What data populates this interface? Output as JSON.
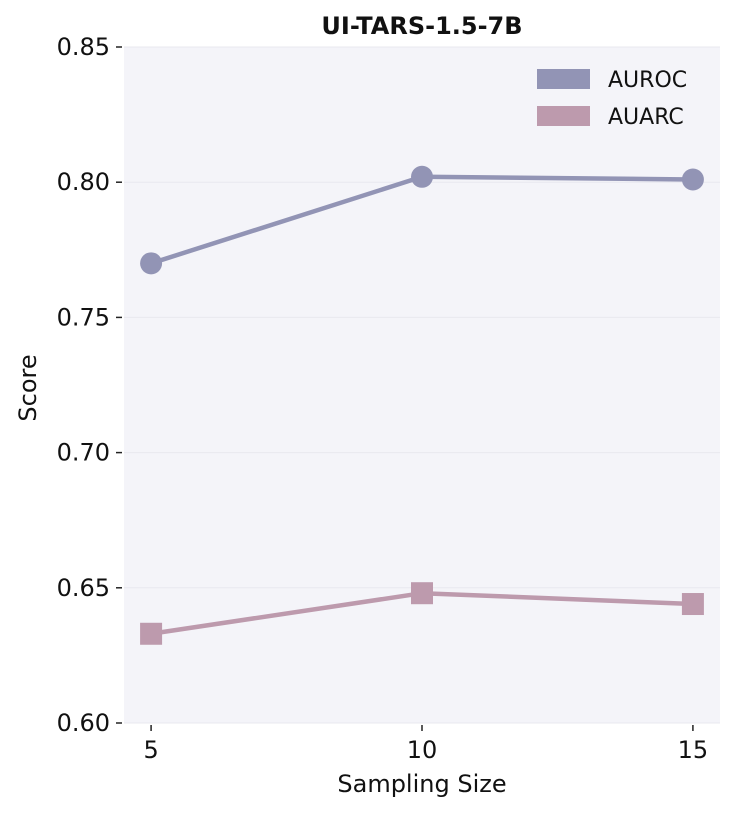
{
  "chart_data": {
    "type": "line",
    "title": "UI-TARS-1.5-7B",
    "xlabel": "Sampling Size",
    "ylabel": "Score",
    "x": [
      5,
      10,
      15
    ],
    "x_tick_labels": [
      "5",
      "10",
      "15"
    ],
    "ylim": [
      0.6,
      0.85
    ],
    "y_ticks": [
      0.6,
      0.65,
      0.7,
      0.75,
      0.8,
      0.85
    ],
    "y_tick_labels": [
      "0.60",
      "0.65",
      "0.70",
      "0.75",
      "0.80",
      "0.85"
    ],
    "grid": true,
    "legend_position": "top-right",
    "background_color": "#f4f4f9",
    "series": [
      {
        "name": "AUROC",
        "marker": "circle",
        "color": "#9294b5",
        "values": [
          0.77,
          0.802,
          0.801
        ]
      },
      {
        "name": "AUARC",
        "marker": "square",
        "color": "#bd9aad",
        "values": [
          0.633,
          0.648,
          0.644
        ]
      }
    ]
  }
}
